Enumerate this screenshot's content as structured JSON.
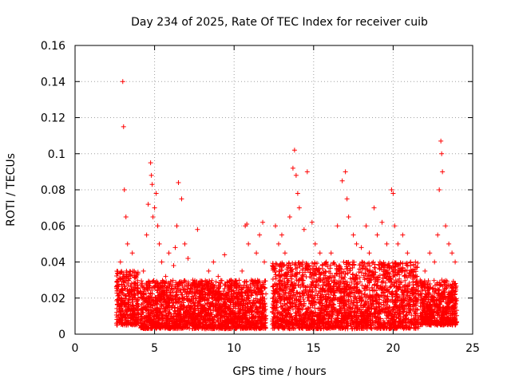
{
  "chart_data": {
    "type": "scatter",
    "title": "Day 234 of 2025, Rate Of TEC Index for receiver cuib",
    "xlabel": "GPS time / hours",
    "ylabel": "ROTI / TECUs",
    "xlim": [
      0,
      25
    ],
    "ylim": [
      0,
      0.16
    ],
    "x_ticks": [
      "0",
      "5",
      "10",
      "15",
      "20",
      "25"
    ],
    "y_ticks": [
      "0",
      "0.02",
      "0.04",
      "0.06",
      "0.08",
      "0.1",
      "0.12",
      "0.14",
      "0.16"
    ],
    "grid": true,
    "marker": "+",
    "color": "#ff0000",
    "series": [
      {
        "x": [
          2.7,
          2.85,
          3.0,
          3.05,
          3.1,
          3.2,
          3.3,
          3.35,
          3.6,
          3.75,
          4.3,
          4.5,
          4.6,
          4.75,
          4.8,
          4.85,
          4.9,
          5.0,
          5.1,
          5.2,
          5.3,
          5.45,
          5.7,
          5.9,
          6.2,
          6.3,
          6.4,
          6.5,
          6.7,
          6.9,
          7.1,
          7.4,
          7.7,
          8.0,
          8.4,
          8.7,
          9.0,
          9.4,
          9.8,
          10.1,
          10.5,
          10.7,
          10.8,
          10.9,
          11.4,
          11.6,
          11.8,
          11.9,
          12.6,
          12.8,
          13.0,
          13.2,
          13.5,
          13.7,
          13.8,
          13.9,
          14.0,
          14.1,
          14.4,
          14.6,
          14.9,
          15.1,
          15.4,
          15.8,
          16.1,
          16.5,
          16.8,
          17.0,
          17.1,
          17.2,
          17.5,
          17.7,
          18.0,
          18.3,
          18.5,
          18.8,
          19.0,
          19.3,
          19.6,
          19.9,
          20.0,
          20.1,
          20.3,
          20.6,
          20.9,
          21.1,
          21.4,
          21.7,
          22.0,
          22.3,
          22.6,
          22.8,
          22.9,
          23.0,
          23.05,
          23.1,
          23.3,
          23.5,
          23.7,
          23.9
        ],
        "y": [
          0.025,
          0.04,
          0.14,
          0.115,
          0.08,
          0.065,
          0.05,
          0.03,
          0.045,
          0.02,
          0.035,
          0.055,
          0.072,
          0.095,
          0.088,
          0.083,
          0.065,
          0.07,
          0.078,
          0.06,
          0.05,
          0.04,
          0.032,
          0.045,
          0.038,
          0.048,
          0.06,
          0.084,
          0.075,
          0.05,
          0.042,
          0.03,
          0.058,
          0.028,
          0.035,
          0.04,
          0.032,
          0.044,
          0.03,
          0.028,
          0.035,
          0.06,
          0.061,
          0.05,
          0.045,
          0.055,
          0.062,
          0.04,
          0.06,
          0.05,
          0.055,
          0.045,
          0.065,
          0.092,
          0.102,
          0.088,
          0.078,
          0.07,
          0.058,
          0.09,
          0.062,
          0.05,
          0.045,
          0.04,
          0.045,
          0.06,
          0.085,
          0.09,
          0.075,
          0.065,
          0.055,
          0.05,
          0.048,
          0.06,
          0.045,
          0.07,
          0.055,
          0.062,
          0.05,
          0.08,
          0.078,
          0.06,
          0.05,
          0.055,
          0.045,
          0.04,
          0.04,
          0.03,
          0.035,
          0.045,
          0.04,
          0.055,
          0.08,
          0.107,
          0.1,
          0.09,
          0.06,
          0.05,
          0.045,
          0.04
        ]
      }
    ],
    "dense_band": {
      "description_none": "",
      "segments": [
        {
          "x": [
            2.6,
            4.0
          ],
          "y": [
            0.005,
            0.035
          ]
        },
        {
          "x": [
            4.1,
            12.0
          ],
          "y": [
            0.003,
            0.03
          ]
        },
        {
          "x": [
            12.4,
            21.6
          ],
          "y": [
            0.003,
            0.04
          ]
        },
        {
          "x": [
            21.7,
            24.0
          ],
          "y": [
            0.005,
            0.03
          ]
        }
      ]
    }
  }
}
